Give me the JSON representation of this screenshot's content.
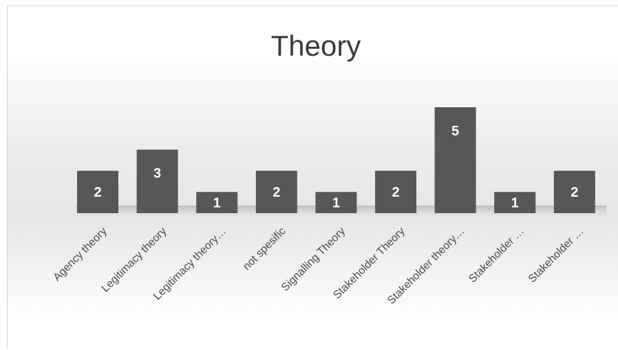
{
  "chart_data": {
    "type": "bar",
    "title": "Theory",
    "xlabel": "",
    "ylabel": "",
    "categories": [
      "Agency theory",
      "Legitimacy theory",
      "Legitimacy theory…",
      "not spesific",
      "Signalling Theory",
      "Stakeholder Theory",
      "Stakeholder theory…",
      "Stakeholder …",
      "Stakeholder …"
    ],
    "values": [
      2,
      3,
      1,
      2,
      1,
      2,
      5,
      1,
      2
    ],
    "data_labels": [
      "2",
      "3",
      "1",
      "2",
      "1",
      "2",
      "5",
      "1",
      "2"
    ],
    "ylim": [
      0,
      5
    ],
    "grid": false,
    "legend": "none",
    "bar_color": "#575757",
    "bar_label_color": "#ffffff"
  }
}
